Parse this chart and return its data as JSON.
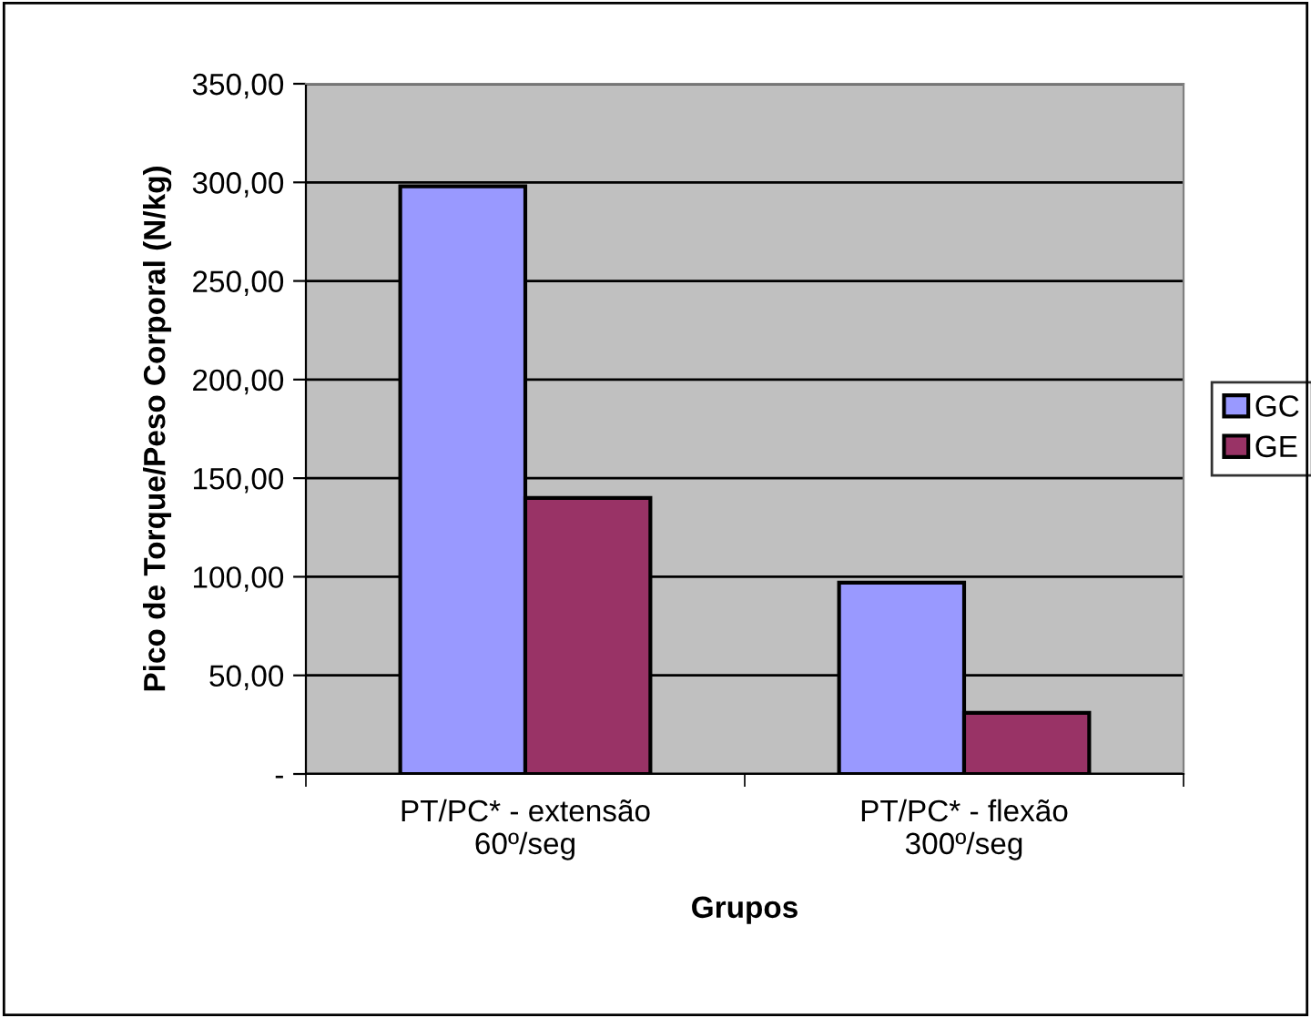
{
  "chart_data": {
    "type": "bar",
    "xlabel": "Grupos",
    "ylabel": "Pico de Torque/Peso Corporal (N/kg)",
    "categories": [
      "PT/PC* - extensão\n60º/seg",
      "PT/PC* - flexão\n300º/seg"
    ],
    "series": [
      {
        "name": "GC",
        "color": "#9999ff",
        "values": [
          298,
          97
        ]
      },
      {
        "name": "GE",
        "color": "#993366",
        "values": [
          140,
          31
        ]
      }
    ],
    "ylim": [
      0,
      350
    ],
    "yticks": [
      {
        "value": 0,
        "label": "-"
      },
      {
        "value": 50,
        "label": "50,00"
      },
      {
        "value": 100,
        "label": "100,00"
      },
      {
        "value": 150,
        "label": "150,00"
      },
      {
        "value": 200,
        "label": "200,00"
      },
      {
        "value": 250,
        "label": "250,00"
      },
      {
        "value": 300,
        "label": "300,00"
      },
      {
        "value": 350,
        "label": "350,00"
      }
    ],
    "grid": "y",
    "legend": "right"
  }
}
